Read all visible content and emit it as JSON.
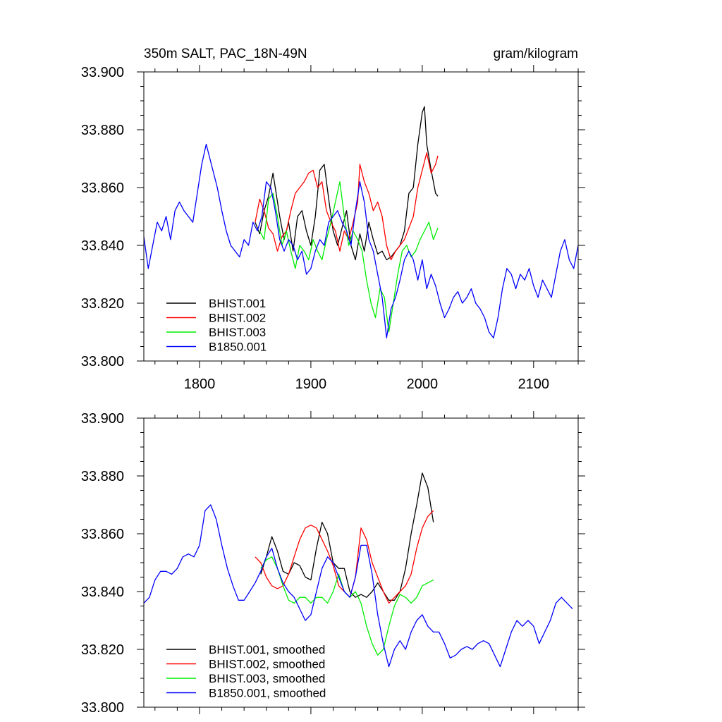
{
  "chart_data": [
    {
      "type": "line",
      "title_left": "350m SALT, PAC_18N-49N",
      "title_right": "gram/kilogram",
      "xlabel": "",
      "ylabel": "",
      "xlim": [
        1750,
        2140
      ],
      "ylim": [
        33.8,
        33.9
      ],
      "x_ticks": [
        1800,
        1900,
        2000,
        2100
      ],
      "x_tick_labels": [
        "1800",
        "1900",
        "2000",
        "2100"
      ],
      "y_ticks": [
        33.8,
        33.82,
        33.84,
        33.86,
        33.88,
        33.9
      ],
      "y_tick_labels": [
        "33.800",
        "33.820",
        "33.840",
        "33.860",
        "33.880",
        "33.900"
      ],
      "legend_position": "bottom-left",
      "series": [
        {
          "name": "BHIST.001",
          "color": "#000000",
          "x": [
            1850,
            1854,
            1858,
            1862,
            1866,
            1868,
            1872,
            1876,
            1880,
            1884,
            1888,
            1892,
            1896,
            1900,
            1904,
            1908,
            1912,
            1916,
            1920,
            1924,
            1928,
            1932,
            1936,
            1940,
            1944,
            1948,
            1952,
            1956,
            1960,
            1964,
            1968,
            1972,
            1976,
            1980,
            1984,
            1988,
            1992,
            1996,
            2000,
            2002,
            2004,
            2008,
            2012,
            2014
          ],
          "values": [
            33.848,
            33.844,
            33.852,
            33.857,
            33.865,
            33.86,
            33.85,
            33.842,
            33.848,
            33.838,
            33.85,
            33.852,
            33.845,
            33.84,
            33.85,
            33.866,
            33.868,
            33.856,
            33.845,
            33.84,
            33.846,
            33.852,
            33.84,
            33.835,
            33.844,
            33.838,
            33.848,
            33.842,
            33.837,
            33.838,
            33.835,
            33.836,
            33.838,
            33.84,
            33.845,
            33.858,
            33.86,
            33.875,
            33.886,
            33.888,
            33.875,
            33.866,
            33.858,
            33.857
          ]
        },
        {
          "name": "BHIST.002",
          "color": "#ff0000",
          "x": [
            1850,
            1854,
            1858,
            1862,
            1866,
            1870,
            1874,
            1878,
            1882,
            1886,
            1890,
            1894,
            1898,
            1902,
            1906,
            1910,
            1914,
            1918,
            1922,
            1926,
            1930,
            1934,
            1938,
            1942,
            1944,
            1948,
            1952,
            1956,
            1960,
            1964,
            1968,
            1972,
            1976,
            1980,
            1984,
            1988,
            1992,
            1996,
            2000,
            2004,
            2008,
            2012,
            2014
          ],
          "values": [
            33.848,
            33.856,
            33.852,
            33.846,
            33.844,
            33.838,
            33.843,
            33.845,
            33.852,
            33.858,
            33.86,
            33.862,
            33.865,
            33.866,
            33.86,
            33.862,
            33.852,
            33.848,
            33.845,
            33.838,
            33.845,
            33.842,
            33.848,
            33.855,
            33.868,
            33.862,
            33.858,
            33.852,
            33.855,
            33.85,
            33.84,
            33.835,
            33.838,
            33.84,
            33.842,
            33.846,
            33.85,
            33.86,
            33.866,
            33.872,
            33.865,
            33.868,
            33.871
          ]
        },
        {
          "name": "BHIST.003",
          "color": "#00ee00",
          "x": [
            1854,
            1858,
            1862,
            1866,
            1870,
            1874,
            1878,
            1882,
            1886,
            1890,
            1894,
            1898,
            1902,
            1906,
            1910,
            1914,
            1918,
            1922,
            1926,
            1930,
            1934,
            1938,
            1942,
            1946,
            1950,
            1954,
            1958,
            1962,
            1966,
            1970,
            1974,
            1978,
            1982,
            1986,
            1990,
            1994,
            1998,
            2002,
            2006,
            2010,
            2014
          ],
          "values": [
            33.845,
            33.842,
            33.856,
            33.858,
            33.85,
            33.84,
            33.845,
            33.838,
            33.832,
            33.84,
            33.838,
            33.835,
            33.842,
            33.838,
            33.835,
            33.842,
            33.848,
            33.855,
            33.862,
            33.85,
            33.84,
            33.845,
            33.842,
            33.838,
            33.828,
            33.82,
            33.815,
            33.825,
            33.822,
            33.81,
            33.82,
            33.83,
            33.838,
            33.84,
            33.836,
            33.838,
            33.842,
            33.845,
            33.848,
            33.842,
            33.846
          ]
        },
        {
          "name": "B1850.001",
          "color": "#0000ff",
          "x": [
            1750,
            1754,
            1758,
            1762,
            1766,
            1770,
            1774,
            1778,
            1782,
            1786,
            1790,
            1794,
            1798,
            1802,
            1806,
            1808,
            1812,
            1816,
            1820,
            1824,
            1828,
            1832,
            1836,
            1840,
            1844,
            1848,
            1852,
            1856,
            1860,
            1864,
            1868,
            1872,
            1876,
            1880,
            1884,
            1888,
            1892,
            1896,
            1900,
            1904,
            1908,
            1912,
            1916,
            1920,
            1924,
            1928,
            1932,
            1936,
            1940,
            1944,
            1948,
            1952,
            1956,
            1960,
            1964,
            1966,
            1968,
            1972,
            1976,
            1980,
            1984,
            1988,
            1992,
            1996,
            2000,
            2004,
            2008,
            2012,
            2016,
            2020,
            2024,
            2028,
            2032,
            2036,
            2040,
            2044,
            2048,
            2052,
            2056,
            2060,
            2064,
            2068,
            2072,
            2076,
            2080,
            2084,
            2088,
            2092,
            2096,
            2100,
            2104,
            2108,
            2112,
            2116,
            2120,
            2124,
            2128,
            2132,
            2136,
            2140
          ],
          "values": [
            33.843,
            33.832,
            33.84,
            33.848,
            33.845,
            33.85,
            33.842,
            33.852,
            33.855,
            33.852,
            33.85,
            33.848,
            33.858,
            33.868,
            33.875,
            33.872,
            33.866,
            33.86,
            33.852,
            33.845,
            33.84,
            33.838,
            33.836,
            33.842,
            33.84,
            33.848,
            33.845,
            33.85,
            33.862,
            33.86,
            33.852,
            33.842,
            33.838,
            33.842,
            33.84,
            33.835,
            33.838,
            33.83,
            33.832,
            33.838,
            33.842,
            33.84,
            33.848,
            33.85,
            33.852,
            33.848,
            33.845,
            33.84,
            33.852,
            33.862,
            33.855,
            33.842,
            33.838,
            33.83,
            33.822,
            33.815,
            33.808,
            33.818,
            33.822,
            33.828,
            33.835,
            33.838,
            33.835,
            33.828,
            33.835,
            33.825,
            33.83,
            33.826,
            33.82,
            33.815,
            33.818,
            33.822,
            33.824,
            33.82,
            33.822,
            33.825,
            33.82,
            33.818,
            33.815,
            33.81,
            33.808,
            33.815,
            33.825,
            33.832,
            33.83,
            33.825,
            33.83,
            33.828,
            33.832,
            33.826,
            33.822,
            33.828,
            33.825,
            33.822,
            33.83,
            33.838,
            33.842,
            33.835,
            33.832,
            33.84
          ]
        }
      ]
    },
    {
      "type": "line",
      "title_left": "",
      "title_right": "",
      "xlabel": "",
      "ylabel": "",
      "xlim": [
        1750,
        2140
      ],
      "ylim": [
        33.8,
        33.9
      ],
      "x_ticks": [
        1800,
        1900,
        2000,
        2100
      ],
      "x_tick_labels": [],
      "y_ticks": [
        33.8,
        33.82,
        33.84,
        33.86,
        33.88,
        33.9
      ],
      "y_tick_labels": [
        "33.800",
        "33.820",
        "33.840",
        "33.860",
        "33.880",
        "33.900"
      ],
      "legend_position": "bottom-left",
      "series": [
        {
          "name": "BHIST.001, smoothed",
          "color": "#000000",
          "x": [
            1855,
            1860,
            1865,
            1870,
            1875,
            1880,
            1885,
            1890,
            1895,
            1900,
            1905,
            1910,
            1915,
            1920,
            1925,
            1930,
            1935,
            1940,
            1945,
            1950,
            1955,
            1960,
            1965,
            1970,
            1975,
            1980,
            1985,
            1990,
            1995,
            2000,
            2005,
            2010
          ],
          "values": [
            33.846,
            33.852,
            33.859,
            33.854,
            33.847,
            33.846,
            33.85,
            33.849,
            33.845,
            33.844,
            33.855,
            33.864,
            33.86,
            33.85,
            33.848,
            33.848,
            33.84,
            33.838,
            33.839,
            33.838,
            33.84,
            33.843,
            33.84,
            33.837,
            33.837,
            33.84,
            33.848,
            33.86,
            33.87,
            33.881,
            33.876,
            33.864
          ]
        },
        {
          "name": "BHIST.002, smoothed",
          "color": "#ff0000",
          "x": [
            1850,
            1855,
            1860,
            1865,
            1870,
            1875,
            1880,
            1885,
            1890,
            1895,
            1900,
            1905,
            1910,
            1915,
            1920,
            1925,
            1930,
            1935,
            1940,
            1945,
            1950,
            1955,
            1960,
            1965,
            1970,
            1975,
            1980,
            1985,
            1990,
            1995,
            2000,
            2005,
            2010
          ],
          "values": [
            33.852,
            33.85,
            33.845,
            33.842,
            33.841,
            33.842,
            33.846,
            33.852,
            33.858,
            33.862,
            33.863,
            33.862,
            33.858,
            33.854,
            33.849,
            33.842,
            33.84,
            33.838,
            33.845,
            33.862,
            33.858,
            33.85,
            33.845,
            33.84,
            33.836,
            33.838,
            33.84,
            33.842,
            33.846,
            33.855,
            33.862,
            33.866,
            33.868
          ]
        },
        {
          "name": "BHIST.003, smoothed",
          "color": "#00ee00",
          "x": [
            1855,
            1860,
            1865,
            1870,
            1875,
            1880,
            1885,
            1890,
            1895,
            1900,
            1905,
            1910,
            1915,
            1920,
            1925,
            1930,
            1935,
            1940,
            1945,
            1950,
            1955,
            1960,
            1965,
            1970,
            1975,
            1980,
            1985,
            1990,
            1995,
            2000,
            2005,
            2010
          ],
          "values": [
            33.848,
            33.851,
            33.852,
            33.848,
            33.842,
            33.837,
            33.836,
            33.838,
            33.838,
            33.836,
            33.838,
            33.838,
            33.836,
            33.84,
            33.846,
            33.84,
            33.838,
            33.84,
            33.836,
            33.828,
            33.822,
            33.818,
            33.82,
            33.828,
            33.835,
            33.839,
            33.838,
            33.836,
            33.838,
            33.842,
            33.843,
            33.844
          ]
        },
        {
          "name": "B1850.001, smoothed",
          "color": "#0000ff",
          "x": [
            1750,
            1755,
            1760,
            1765,
            1770,
            1775,
            1780,
            1785,
            1790,
            1795,
            1800,
            1805,
            1810,
            1815,
            1820,
            1825,
            1830,
            1835,
            1840,
            1845,
            1850,
            1855,
            1860,
            1865,
            1870,
            1875,
            1880,
            1885,
            1890,
            1895,
            1900,
            1905,
            1910,
            1915,
            1920,
            1925,
            1930,
            1935,
            1940,
            1945,
            1950,
            1955,
            1960,
            1965,
            1970,
            1975,
            1980,
            1985,
            1990,
            1995,
            2000,
            2005,
            2010,
            2015,
            2020,
            2025,
            2030,
            2035,
            2040,
            2045,
            2050,
            2055,
            2060,
            2065,
            2070,
            2075,
            2080,
            2085,
            2090,
            2095,
            2100,
            2105,
            2110,
            2115,
            2120,
            2125,
            2130,
            2135
          ],
          "values": [
            33.836,
            33.838,
            33.844,
            33.847,
            33.847,
            33.846,
            33.848,
            33.852,
            33.853,
            33.852,
            33.856,
            33.868,
            33.87,
            33.865,
            33.856,
            33.848,
            33.842,
            33.837,
            33.837,
            33.84,
            33.843,
            33.847,
            33.852,
            33.855,
            33.848,
            33.843,
            33.84,
            33.838,
            33.834,
            33.83,
            33.832,
            33.84,
            33.848,
            33.852,
            33.85,
            33.845,
            33.84,
            33.838,
            33.845,
            33.856,
            33.856,
            33.846,
            33.832,
            33.822,
            33.814,
            33.82,
            33.823,
            33.82,
            33.826,
            33.83,
            33.832,
            33.828,
            33.826,
            33.826,
            33.822,
            33.817,
            33.818,
            33.82,
            33.821,
            33.82,
            33.822,
            33.823,
            33.822,
            33.818,
            33.814,
            33.82,
            33.826,
            33.83,
            33.828,
            33.83,
            33.828,
            33.822,
            33.826,
            33.83,
            33.836,
            33.838,
            33.836,
            33.834
          ]
        }
      ]
    }
  ]
}
